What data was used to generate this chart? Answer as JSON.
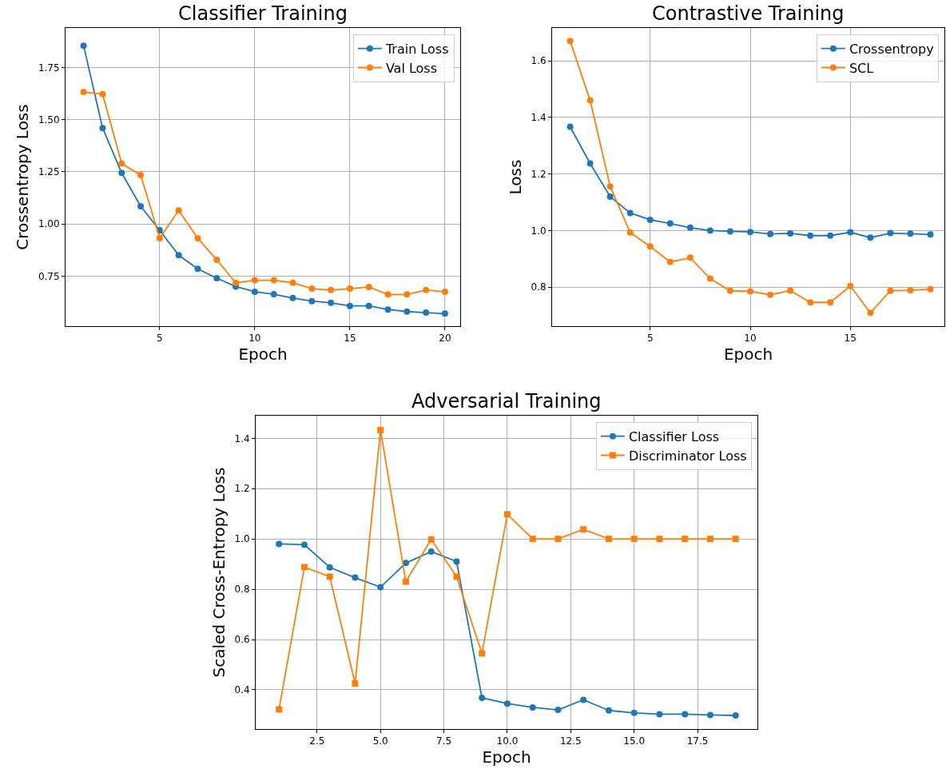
{
  "chart_data": [
    {
      "type": "line",
      "title": "Classifier Training",
      "xlabel": "Epoch",
      "ylabel": "Crossentropy Loss",
      "x": [
        1,
        2,
        3,
        4,
        5,
        6,
        7,
        8,
        9,
        10,
        11,
        12,
        13,
        14,
        15,
        16,
        17,
        18,
        19,
        20
      ],
      "xlim": [
        0.05,
        20.8
      ],
      "ylim": [
        0.51,
        1.94
      ],
      "xticks": [
        5,
        10,
        15,
        20
      ],
      "yticks": [
        {
          "value": 0.75,
          "label": "0.75"
        },
        {
          "value": 1.0,
          "label": "1.00"
        },
        {
          "value": 1.25,
          "label": "1.25"
        },
        {
          "value": 1.5,
          "label": "1.50"
        },
        {
          "value": 1.75,
          "label": "1.75"
        }
      ],
      "grid": true,
      "legend": "top right",
      "marker": "circle",
      "series": [
        {
          "name": "Train Loss",
          "color": "#1f77b4",
          "values": [
            1.855,
            1.46,
            1.245,
            1.085,
            0.97,
            0.85,
            0.785,
            0.74,
            0.7,
            0.675,
            0.663,
            0.645,
            0.63,
            0.622,
            0.607,
            0.607,
            0.59,
            0.58,
            0.575,
            0.57
          ]
        },
        {
          "name": "Val Loss",
          "color": "#ff7f0e",
          "values": [
            1.633,
            1.623,
            1.29,
            1.235,
            0.932,
            1.065,
            0.932,
            0.828,
            0.718,
            0.73,
            0.73,
            0.718,
            0.69,
            0.683,
            0.69,
            0.698,
            0.662,
            0.662,
            0.683,
            0.675
          ]
        }
      ]
    },
    {
      "type": "line",
      "title": "Contrastive Training",
      "xlabel": "Epoch",
      "ylabel": "Loss",
      "x": [
        1,
        2,
        3,
        4,
        5,
        6,
        7,
        8,
        9,
        10,
        11,
        12,
        13,
        14,
        15,
        16,
        17,
        18,
        19
      ],
      "xlim": [
        0.1,
        19.7
      ],
      "ylim": [
        0.662,
        1.716
      ],
      "xticks": [
        5,
        10,
        15
      ],
      "yticks": [
        0.8,
        {
          "value": 1.0,
          "label": "1.0"
        },
        1.2,
        1.4,
        1.6
      ],
      "grid": true,
      "legend": "top right",
      "marker": "circle",
      "series": [
        {
          "name": "Crossentropy",
          "color": "#1f77b4",
          "values": [
            1.367,
            1.237,
            1.12,
            1.062,
            1.038,
            1.025,
            1.01,
            1.0,
            0.997,
            0.995,
            0.988,
            0.99,
            0.982,
            0.982,
            0.994,
            0.975,
            0.991,
            0.989,
            0.986
          ]
        },
        {
          "name": "SCL",
          "color": "#ff7f0e",
          "values": [
            1.67,
            1.46,
            1.156,
            0.993,
            0.944,
            0.889,
            0.904,
            0.83,
            0.787,
            0.785,
            0.773,
            0.788,
            0.746,
            0.746,
            0.804,
            0.709,
            0.787,
            0.789,
            0.793
          ]
        }
      ]
    },
    {
      "type": "line",
      "title": "Adversarial Training",
      "xlabel": "Epoch",
      "ylabel": "Scaled Cross-Entropy Loss",
      "x": [
        1,
        2,
        3,
        4,
        5,
        6,
        7,
        8,
        9,
        10,
        11,
        12,
        13,
        14,
        15,
        16,
        17,
        18,
        19
      ],
      "xlim": [
        0.08,
        19.86
      ],
      "ylim": [
        0.244,
        1.49
      ],
      "xticks": [
        2.5,
        {
          "value": 5.0,
          "label": "5.0"
        },
        7.5,
        {
          "value": 10.0,
          "label": "10.0"
        },
        12.5,
        {
          "value": 15.0,
          "label": "15.0"
        },
        17.5
      ],
      "yticks": [
        0.4,
        0.6,
        0.8,
        {
          "value": 1.0,
          "label": "1.0"
        },
        1.2,
        1.4
      ],
      "grid": true,
      "legend": "top right",
      "series": [
        {
          "name": "Classifier Loss",
          "color": "#1f77b4",
          "marker": "circle",
          "values": [
            0.98,
            0.977,
            0.887,
            0.846,
            0.808,
            0.904,
            0.95,
            0.91,
            0.368,
            0.345,
            0.33,
            0.32,
            0.36,
            0.318,
            0.308,
            0.303,
            0.303,
            0.3,
            0.298
          ]
        },
        {
          "name": "Discriminator Loss",
          "color": "#ff7f0e",
          "marker": "square",
          "values": [
            0.322,
            0.888,
            0.85,
            0.425,
            1.433,
            0.83,
            0.998,
            0.85,
            0.545,
            1.098,
            1.0,
            1.0,
            1.038,
            1.0,
            1.0,
            1.0,
            1.0,
            1.0,
            1.0
          ]
        }
      ]
    }
  ]
}
